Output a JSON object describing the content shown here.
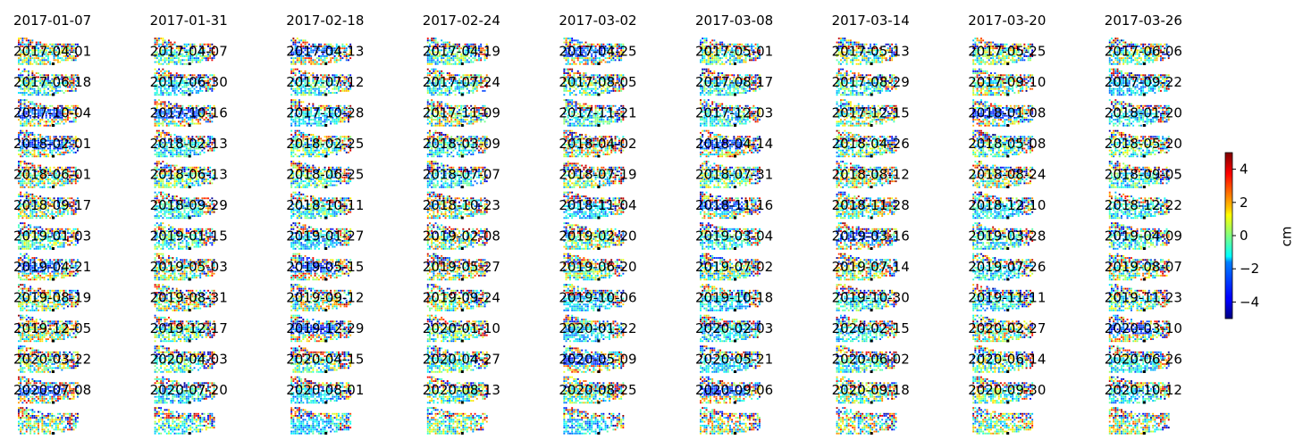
{
  "chart_data": {
    "type": "heatmap",
    "title": "",
    "colormap": "jet",
    "grid_columns": 9,
    "panel_titles": [
      "2017-01-07",
      "2017-01-31",
      "2017-02-18",
      "2017-02-24",
      "2017-03-02",
      "2017-03-08",
      "2017-03-14",
      "2017-03-20",
      "2017-03-26",
      "2017-04-01",
      "2017-04-07",
      "2017-04-13",
      "2017-04-19",
      "2017-04-25",
      "2017-05-01",
      "2017-05-13",
      "2017-05-25",
      "2017-06-06",
      "2017-06-18",
      "2017-06-30",
      "2017-07-12",
      "2017-07-24",
      "2017-08-05",
      "2017-08-17",
      "2017-08-29",
      "2017-09-10",
      "2017-09-22",
      "2017-10-04",
      "2017-10-16",
      "2017-10-28",
      "2017-11-09",
      "2017-11-21",
      "2017-12-03",
      "2017-12-15",
      "2018-01-08",
      "2018-01-20",
      "2018-02-01",
      "2018-02-13",
      "2018-02-25",
      "2018-03-09",
      "2018-04-02",
      "2018-04-14",
      "2018-04-26",
      "2018-05-08",
      "2018-05-20",
      "2018-06-01",
      "2018-06-13",
      "2018-06-25",
      "2018-07-07",
      "2018-07-19",
      "2018-07-31",
      "2018-08-12",
      "2018-08-24",
      "2018-09-05",
      "2018-09-17",
      "2018-09-29",
      "2018-10-11",
      "2018-10-23",
      "2018-11-04",
      "2018-11-16",
      "2018-11-28",
      "2018-12-10",
      "2018-12-22",
      "2019-01-03",
      "2019-01-15",
      "2019-01-27",
      "2019-02-08",
      "2019-02-20",
      "2019-03-04",
      "2019-03-16",
      "2019-03-28",
      "2019-04-09",
      "2019-04-21",
      "2019-05-03",
      "2019-05-15",
      "2019-05-27",
      "2019-06-20",
      "2019-07-02",
      "2019-07-14",
      "2019-07-26",
      "2019-08-07",
      "2019-08-19",
      "2019-08-31",
      "2019-09-12",
      "2019-09-24",
      "2019-10-06",
      "2019-10-18",
      "2019-10-30",
      "2019-11-11",
      "2019-11-23",
      "2019-12-05",
      "2019-12-17",
      "2019-12-29",
      "2020-01-10",
      "2020-01-22",
      "2020-02-03",
      "2020-02-15",
      "2020-02-27",
      "2020-03-10",
      "2020-03-22",
      "2020-04-03",
      "2020-04-15",
      "2020-04-27",
      "2020-05-09",
      "2020-05-21",
      "2020-06-02",
      "2020-06-14",
      "2020-06-26",
      "2020-07-08",
      "2020-07-20",
      "2020-08-01",
      "2020-08-13",
      "2020-08-25",
      "2020-09-06",
      "2020-09-18",
      "2020-09-30",
      "2020-10-12"
    ],
    "colorbar": {
      "label": "cm",
      "vmin": -5,
      "vmax": 5,
      "ticks": [
        -4,
        -2,
        0,
        2,
        4
      ],
      "tick_labels": [
        "−4",
        "−2",
        "0",
        "2",
        "4"
      ]
    }
  }
}
